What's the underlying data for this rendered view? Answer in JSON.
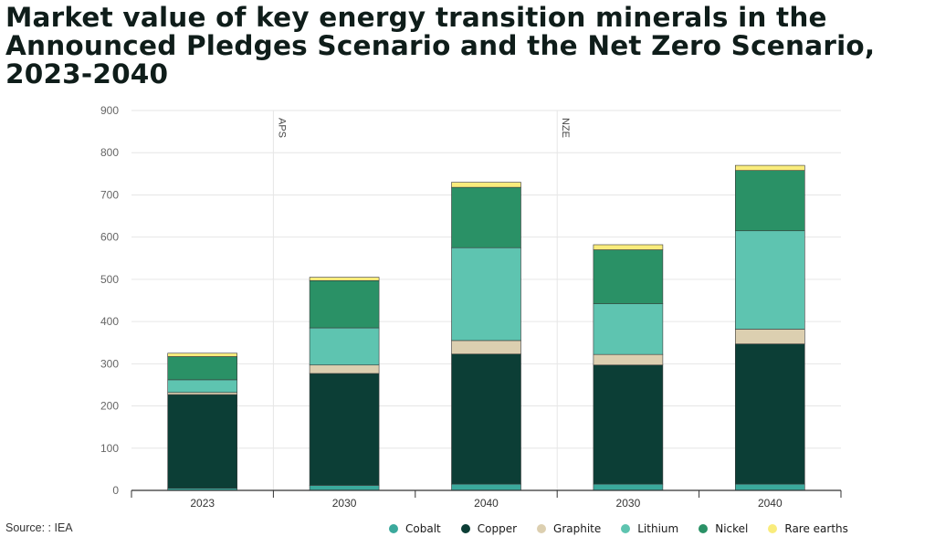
{
  "title": "Market value of key energy transition minerals in the Announced Pledges Scenario and the Net Zero Scenario, 2023-2040",
  "source": "Source: : IEA",
  "chart_data": {
    "type": "bar",
    "stacked": true,
    "categories": [
      "2023",
      "2030",
      "2040",
      "2030",
      "2040"
    ],
    "scenario_labels": [
      {
        "label": "APS"
      },
      {
        "label": "NZE"
      }
    ],
    "ylim": [
      0,
      900
    ],
    "yticks": [
      0,
      100,
      200,
      300,
      400,
      500,
      600,
      700,
      800,
      900
    ],
    "grid": true,
    "legend_position": "bottom",
    "series": [
      {
        "name": "Cobalt",
        "color": "#3ba99c",
        "values": [
          5,
          12,
          15,
          15,
          15
        ]
      },
      {
        "name": "Copper",
        "color": "#0c3e36",
        "values": [
          222,
          265,
          308,
          282,
          332
        ]
      },
      {
        "name": "Graphite",
        "color": "#dccfb0",
        "values": [
          5,
          20,
          32,
          25,
          35
        ]
      },
      {
        "name": "Lithium",
        "color": "#5ec4b0",
        "values": [
          30,
          88,
          220,
          120,
          233
        ]
      },
      {
        "name": "Nickel",
        "color": "#2a9166",
        "values": [
          55,
          112,
          143,
          128,
          143
        ]
      },
      {
        "name": "Rare earths",
        "color": "#f9ec7c",
        "values": [
          8,
          8,
          12,
          12,
          12
        ]
      }
    ]
  }
}
